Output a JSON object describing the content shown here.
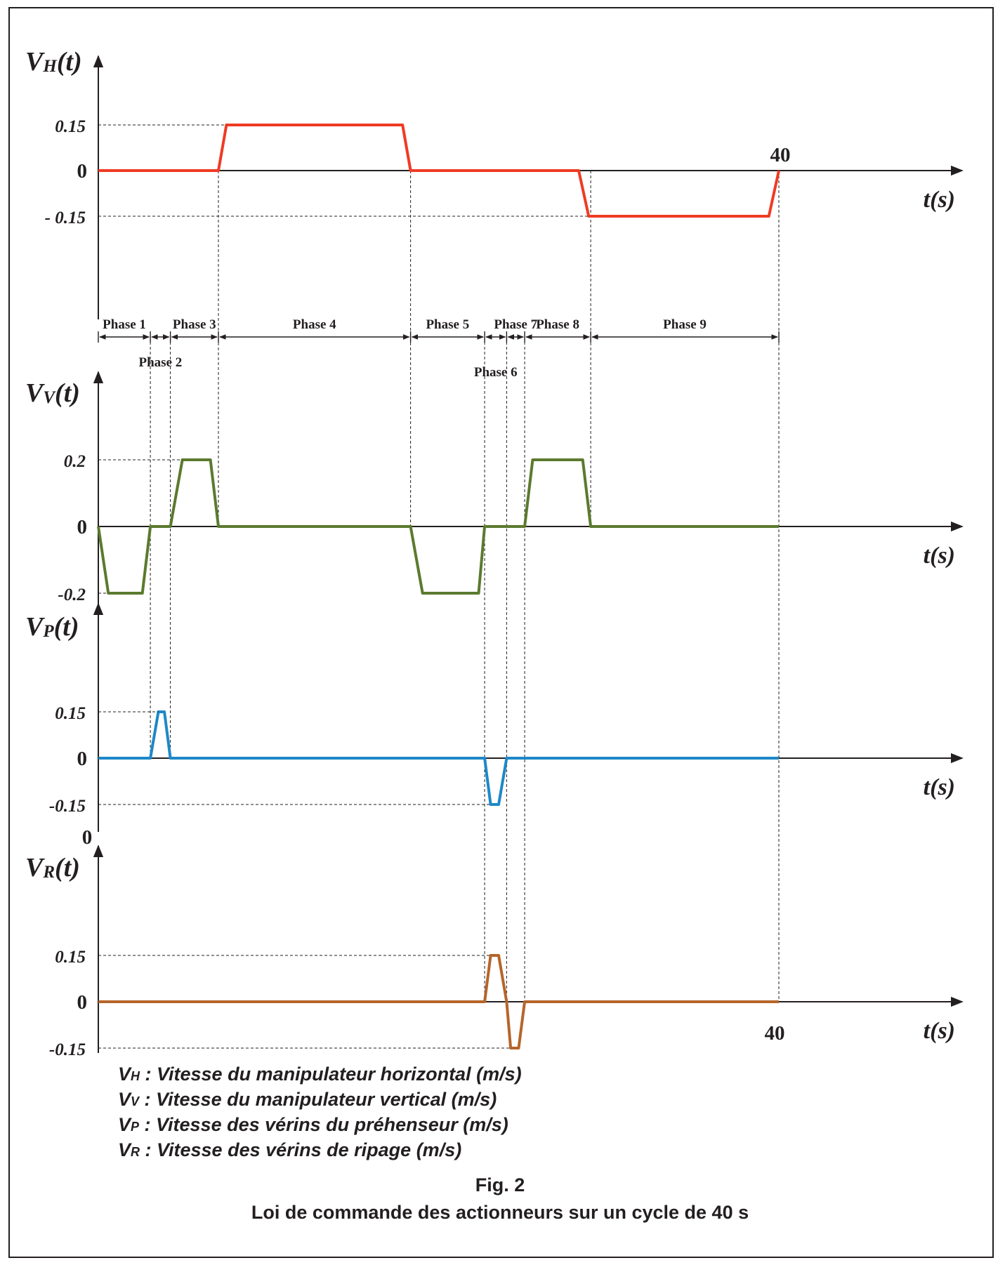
{
  "chart_data": {
    "type": "line",
    "x_unit_label": "t(s)",
    "x_end": 40,
    "plots": [
      {
        "id": "vh",
        "ylabel_main": "V",
        "ylabel_sub": "H",
        "ylabel_suffix": "(t)",
        "color": "#ef3b24",
        "ticks": [
          {
            "v": 0.15,
            "label": "0.15"
          },
          {
            "v": 0,
            "label": "0"
          },
          {
            "v": -0.15,
            "label": "- 0.15"
          }
        ],
        "points": [
          [
            0,
            0
          ],
          [
            6,
            0
          ],
          [
            6.4,
            0.15
          ],
          [
            15.2,
            0.15
          ],
          [
            15.6,
            0
          ],
          [
            24,
            0
          ],
          [
            24.5,
            -0.15
          ],
          [
            33.5,
            -0.15
          ],
          [
            34,
            0
          ]
        ]
      },
      {
        "id": "vv",
        "ylabel_main": "V",
        "ylabel_sub": "V",
        "ylabel_suffix": "(t)",
        "color": "#5b7a2e",
        "ticks": [
          {
            "v": 0.2,
            "label": "0.2"
          },
          {
            "v": 0,
            "label": "0"
          },
          {
            "v": -0.2,
            "label": "-0.2"
          }
        ],
        "points": [
          [
            0,
            0
          ],
          [
            0.5,
            -0.2
          ],
          [
            2.2,
            -0.2
          ],
          [
            2.6,
            0
          ],
          [
            3.6,
            0
          ],
          [
            4.2,
            0.2
          ],
          [
            5.6,
            0.2
          ],
          [
            6,
            0
          ],
          [
            15.6,
            0
          ],
          [
            16.2,
            -0.2
          ],
          [
            19,
            -0.2
          ],
          [
            19.3,
            0
          ],
          [
            21.3,
            0
          ],
          [
            21.7,
            0.2
          ],
          [
            24.2,
            0.2
          ],
          [
            24.6,
            0
          ],
          [
            34,
            0
          ]
        ]
      },
      {
        "id": "vp",
        "ylabel_main": "V",
        "ylabel_sub": "P",
        "ylabel_suffix": "(t)",
        "color": "#1e88c8",
        "ticks": [
          {
            "v": 0.15,
            "label": "0.15"
          },
          {
            "v": 0,
            "label": "0"
          },
          {
            "v": -0.15,
            "label": "-0.15"
          }
        ],
        "points": [
          [
            0,
            0
          ],
          [
            2.6,
            0
          ],
          [
            3,
            0.15
          ],
          [
            3.3,
            0.15
          ],
          [
            3.6,
            0
          ],
          [
            19.3,
            0
          ],
          [
            19.6,
            -0.15
          ],
          [
            20,
            -0.15
          ],
          [
            20.4,
            0
          ],
          [
            34,
            0
          ]
        ]
      },
      {
        "id": "vr",
        "ylabel_main": "V",
        "ylabel_sub": "R",
        "ylabel_suffix": "(t)",
        "top_mark": "0",
        "color": "#b5652a",
        "ticks": [
          {
            "v": 0.15,
            "label": "0.15"
          },
          {
            "v": 0,
            "label": "0"
          },
          {
            "v": -0.15,
            "label": "-0.15"
          }
        ],
        "points": [
          [
            0,
            0
          ],
          [
            19.3,
            0
          ],
          [
            19.6,
            0.15
          ],
          [
            20,
            0.15
          ],
          [
            20.4,
            0
          ],
          [
            20.6,
            -0.15
          ],
          [
            21,
            -0.15
          ],
          [
            21.3,
            0
          ],
          [
            34,
            0
          ]
        ]
      }
    ],
    "phases": [
      {
        "label": "Phase 1",
        "start": 0,
        "end": 2.6,
        "row": "top"
      },
      {
        "label": "Phase 2",
        "start": 2.6,
        "end": 3.6,
        "row": "bottom"
      },
      {
        "label": "Phase 3",
        "start": 3.6,
        "end": 6,
        "row": "top"
      },
      {
        "label": "Phase 4",
        "start": 6,
        "end": 15.6,
        "row": "top"
      },
      {
        "label": "Phase 5",
        "start": 15.6,
        "end": 19.3,
        "row": "top"
      },
      {
        "label": "Phase 6",
        "start": 19.3,
        "end": 20.4,
        "row": "bottom"
      },
      {
        "label": "Phase 7",
        "start": 20.4,
        "end": 21.3,
        "row": "top"
      },
      {
        "label": "Phase 8",
        "start": 21.3,
        "end": 24.6,
        "row": "top"
      },
      {
        "label": "Phase 9",
        "start": 24.6,
        "end": 34,
        "row": "top"
      }
    ],
    "end_label": "40"
  },
  "legend": [
    {
      "sym": "V",
      "sub": "H",
      "text": " : Vitesse du manipulateur horizontal (m/s)"
    },
    {
      "sym": "V",
      "sub": "V",
      "text": " : Vitesse du manipulateur vertical (m/s)"
    },
    {
      "sym": "V",
      "sub": "P",
      "text": " : Vitesse des vérins du préhenseur (m/s)"
    },
    {
      "sym": "V",
      "sub": "R",
      "text": " : Vitesse des vérins de ripage (m/s)"
    }
  ],
  "caption": {
    "fig": "Fig. 2",
    "title": "Loi de commande des actionneurs sur un cycle de 40 s"
  }
}
